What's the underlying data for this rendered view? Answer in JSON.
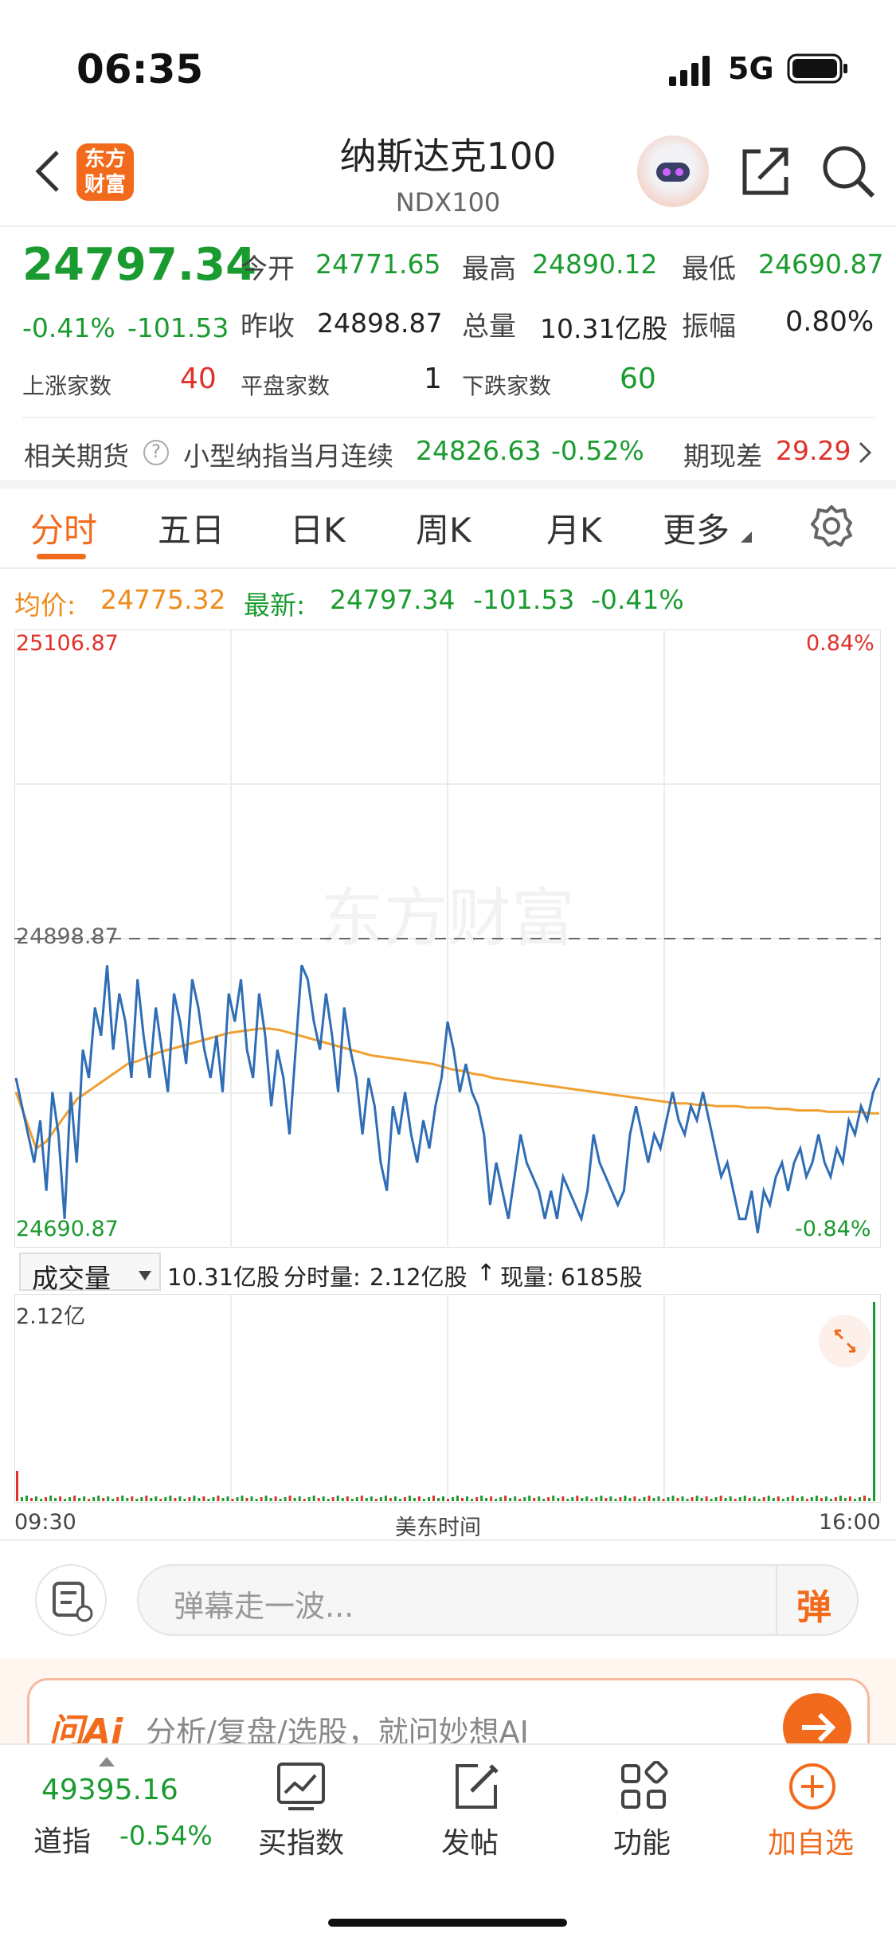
{
  "status": {
    "time": "06:35",
    "network": "5G"
  },
  "header": {
    "title": "纳斯达克100",
    "code": "NDX100",
    "logo_text_1": "东方",
    "logo_text_2": "财富"
  },
  "quote": {
    "price": "24797.34",
    "change_pct": "-0.41%",
    "change": "-101.53",
    "open_label": "今开",
    "open": "24771.65",
    "high_label": "最高",
    "high": "24890.12",
    "low_label": "最低",
    "low": "24690.87",
    "prev_close_label": "昨收",
    "prev_close": "24898.87",
    "volume_label": "总量",
    "volume": "10.31亿股",
    "amplitude_label": "振幅",
    "amplitude": "0.80%",
    "up_label": "上涨家数",
    "up": "40",
    "flat_label": "平盘家数",
    "flat": "1",
    "down_label": "下跌家数",
    "down": "60"
  },
  "futures": {
    "label": "相关期货",
    "help": "?",
    "name": "小型纳指当月连续",
    "price": "24826.63",
    "pct": "-0.52%",
    "basis_label": "期现差",
    "basis": "29.29"
  },
  "tabs": [
    "分时",
    "五日",
    "日K",
    "周K",
    "月K",
    "更多"
  ],
  "chart_header": {
    "avg_label": "均价:",
    "avg": "24775.32",
    "last_label": "最新:",
    "last": "24797.34",
    "change": "-101.53",
    "pct": "-0.41%"
  },
  "chart_data": {
    "type": "line",
    "y_max_label": "25106.87",
    "y_min_label": "24690.87",
    "pct_max_label": "0.84%",
    "pct_min_label": "-0.84%",
    "ref_label": "24898.87",
    "ylim": [
      24690.87,
      25106.87
    ],
    "reference": 24898.87,
    "series": [
      {
        "values": [
          24800,
          24780,
          24760,
          24740,
          24770,
          24720,
          24790,
          24760,
          24700,
          24790,
          24740,
          24820,
          24800,
          24850,
          24830,
          24880,
          24820,
          24860,
          24840,
          24800,
          24870,
          24830,
          24800,
          24850,
          24820,
          24790,
          24860,
          24840,
          24810,
          24870,
          24850,
          24820,
          24800,
          24830,
          24790,
          24860,
          24840,
          24870,
          24820,
          24800,
          24860,
          24830,
          24780,
          24820,
          24800,
          24760,
          24820,
          24880,
          24870,
          24840,
          24820,
          24860,
          24830,
          24790,
          24850,
          24820,
          24800,
          24760,
          24800,
          24780,
          24740,
          24720,
          24780,
          24760,
          24790,
          24760,
          24740,
          24770,
          24750,
          24780,
          24800,
          24840,
          24820,
          24790,
          24810,
          24790,
          24780,
          24760,
          24710,
          24740,
          24720,
          24700,
          24730,
          24760,
          24740,
          24730,
          24720,
          24700,
          24720,
          24700,
          24730,
          24720,
          24710,
          24700,
          24720,
          24760,
          24740,
          24730,
          24720,
          24710,
          24720,
          24760,
          24780,
          24760,
          24740,
          24760,
          24750,
          24770,
          24790,
          24770,
          24760,
          24780,
          24770,
          24790,
          24770,
          24750,
          24730,
          24740,
          24720,
          24700,
          24700,
          24720,
          24690,
          24720,
          24710,
          24730,
          24740,
          24720,
          24740,
          24750,
          24730,
          24740,
          24760,
          24740,
          24730,
          24750,
          24740,
          24770,
          24760,
          24780,
          24770,
          24790,
          24800
        ]
      },
      {
        "values": [
          24790,
          24770,
          24750,
          24755,
          24765,
          24775,
          24785,
          24790,
          24795,
          24800,
          24805,
          24810,
          24812,
          24815,
          24818,
          24820,
          24822,
          24824,
          24826,
          24828,
          24830,
          24832,
          24833,
          24834,
          24835,
          24835,
          24834,
          24832,
          24830,
          24828,
          24826,
          24824,
          24822,
          24820,
          24818,
          24816,
          24815,
          24814,
          24813,
          24812,
          24811,
          24810,
          24808,
          24806,
          24805,
          24803,
          24802,
          24800,
          24799,
          24798,
          24797,
          24796,
          24795,
          24794,
          24793,
          24792,
          24791,
          24790,
          24789,
          24788,
          24787,
          24786,
          24785,
          24784,
          24783,
          24782,
          24782,
          24781,
          24781,
          24780,
          24780,
          24780,
          24779,
          24779,
          24779,
          24778,
          24778,
          24777,
          24777,
          24777,
          24776,
          24776,
          24776,
          24776,
          24775,
          24775
        ]
      }
    ],
    "x_start_label": "09:30",
    "x_mid_label": "美东时间",
    "x_end_label": "16:00"
  },
  "volume": {
    "selector": "成交量",
    "total": "10.31亿股",
    "tick_label": "分时量:",
    "tick_value": "2.12亿股",
    "arrow": "↑",
    "now_label": "现量:",
    "now": "6185股",
    "max_label": "2.12亿"
  },
  "danmu": {
    "placeholder": "弹幕走一波...",
    "button": "弹"
  },
  "ai": {
    "logo": "问Ai",
    "placeholder": "分析/复盘/选股，就问妙想AI"
  },
  "bottom": {
    "index_value": "49395.16",
    "index_name": "道指",
    "index_pct": "-0.54%",
    "items": [
      {
        "label": "买指数",
        "icon": "chart-icon"
      },
      {
        "label": "发帖",
        "icon": "edit-icon"
      },
      {
        "label": "功能",
        "icon": "grid-icon"
      },
      {
        "label": "加自选",
        "icon": "add-circle-icon"
      }
    ]
  },
  "watermark": "东方财富",
  "colors": {
    "up": "#e0312a",
    "down": "#1a9b2f",
    "accent": "#f26a1b",
    "avg_line": "#f0a030",
    "price_line": "#2f6db5"
  }
}
